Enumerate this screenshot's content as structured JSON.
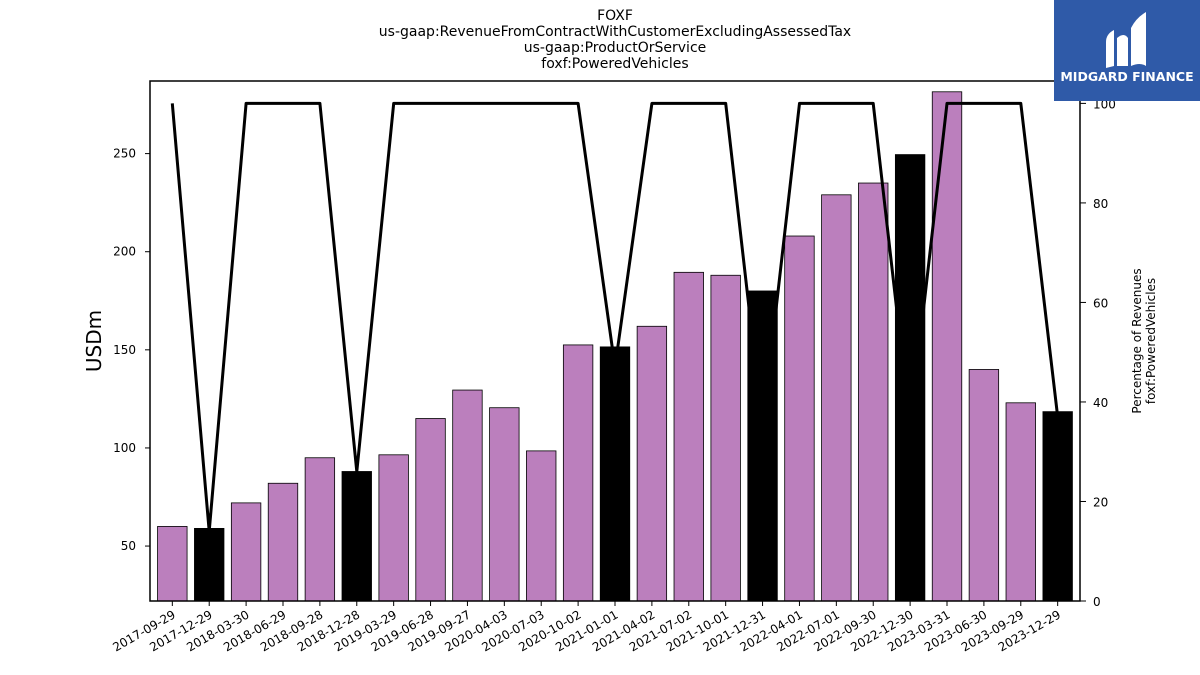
{
  "chart_data": {
    "type": "bar",
    "title_lines": [
      "FOXF",
      "us-gaap:RevenueFromContractWithCustomerExcludingAssessedTax",
      "us-gaap:ProductOrService",
      "foxf:PoweredVehicles"
    ],
    "ylabel": "USDm",
    "y2label_lines": [
      "Percentage of Revenues",
      "foxf:PoweredVehicles"
    ],
    "ylim": [
      22,
      287
    ],
    "y2lim": [
      0,
      104.5
    ],
    "yticks": [
      50,
      100,
      150,
      200,
      250
    ],
    "y2ticks": [
      0,
      20,
      40,
      60,
      80,
      100
    ],
    "categories": [
      "2017-09-29",
      "2017-12-29",
      "2018-03-30",
      "2018-06-29",
      "2018-09-28",
      "2018-12-28",
      "2019-03-29",
      "2019-06-28",
      "2019-09-27",
      "2020-04-03",
      "2020-07-03",
      "2020-10-02",
      "2021-01-01",
      "2021-04-02",
      "2021-07-02",
      "2021-10-01",
      "2021-12-31",
      "2022-04-01",
      "2022-07-01",
      "2022-09-30",
      "2022-12-30",
      "2023-03-31",
      "2023-06-30",
      "2023-09-29",
      "2023-12-29"
    ],
    "series": [
      {
        "type": "bar",
        "values": [
          60,
          59,
          72,
          82,
          95,
          88,
          96.5,
          115,
          129.5,
          120.5,
          98.5,
          152.5,
          151.5,
          162,
          189.5,
          188,
          180,
          208,
          229,
          235,
          249.5,
          281.5,
          140,
          123,
          118.5
        ],
        "colors": [
          "#bb7fbd",
          "#000000",
          "#bb7fbd",
          "#bb7fbd",
          "#bb7fbd",
          "#000000",
          "#bb7fbd",
          "#bb7fbd",
          "#bb7fbd",
          "#bb7fbd",
          "#bb7fbd",
          "#bb7fbd",
          "#000000",
          "#bb7fbd",
          "#bb7fbd",
          "#bb7fbd",
          "#000000",
          "#bb7fbd",
          "#bb7fbd",
          "#bb7fbd",
          "#000000",
          "#bb7fbd",
          "#bb7fbd",
          "#bb7fbd",
          "#000000"
        ]
      },
      {
        "type": "line",
        "axis": "right",
        "values": [
          100,
          14,
          100,
          100,
          100,
          26,
          100,
          100,
          100,
          100,
          100,
          100,
          47,
          100,
          100,
          100,
          35,
          100,
          100,
          100,
          35,
          100,
          100,
          100,
          37
        ],
        "color": "#000000"
      }
    ],
    "grid": false,
    "legend": "none"
  },
  "logo": {
    "text": "MIDGARD FINANCE",
    "background": "#2f5aa8"
  }
}
